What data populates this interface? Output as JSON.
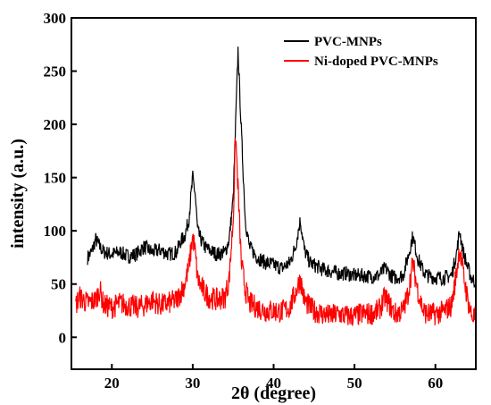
{
  "chart_data": {
    "type": "line",
    "xlabel": "2θ (degree)",
    "ylabel": "intensity (a.u.)",
    "xlim": [
      15,
      65
    ],
    "ylim": [
      -30,
      300
    ],
    "x_ticks": [
      20,
      30,
      40,
      50,
      60
    ],
    "y_ticks": [
      0,
      50,
      100,
      150,
      200,
      250,
      300
    ],
    "grid": false,
    "legend_position": "top-right",
    "series": [
      {
        "name": "PVC-MNPs",
        "color": "#000000",
        "x": [
          17,
          17.5,
          18,
          18.5,
          19,
          20,
          21,
          22,
          23,
          24,
          25,
          26,
          27,
          28,
          28.5,
          29,
          29.5,
          30,
          30.3,
          30.6,
          31,
          31.5,
          32,
          33,
          34,
          34.5,
          35,
          35.3,
          35.6,
          36,
          36.5,
          37,
          38,
          39,
          40,
          41,
          42,
          42.7,
          43.3,
          43.8,
          44.5,
          45,
          46,
          47,
          48,
          49,
          50,
          51,
          52,
          53,
          53.8,
          54.5,
          55,
          56,
          56.6,
          57.2,
          57.8,
          58.5,
          59,
          60,
          61,
          62,
          62.6,
          63,
          63.4,
          64,
          64.5,
          65
        ],
        "y": [
          75,
          80,
          92,
          85,
          80,
          78,
          80,
          76,
          78,
          85,
          80,
          82,
          78,
          80,
          90,
          95,
          110,
          150,
          135,
          100,
          92,
          85,
          82,
          78,
          80,
          92,
          130,
          200,
          270,
          195,
          110,
          85,
          75,
          70,
          68,
          65,
          70,
          85,
          110,
          82,
          70,
          68,
          64,
          62,
          60,
          60,
          58,
          58,
          57,
          58,
          65,
          58,
          56,
          58,
          75,
          95,
          75,
          62,
          58,
          56,
          56,
          58,
          78,
          100,
          82,
          65,
          55,
          52
        ]
      },
      {
        "name": "Ni-doped PVC-MNPs",
        "color": "#ff0000",
        "x": [
          15.5,
          16,
          17,
          18,
          18.5,
          19,
          20,
          21,
          22,
          23,
          24,
          25,
          26,
          27,
          28,
          28.5,
          29,
          29.5,
          30,
          30.3,
          30.6,
          31,
          31.5,
          32,
          33,
          34,
          34.5,
          35,
          35.3,
          35.6,
          36,
          36.5,
          37,
          38,
          39,
          40,
          41,
          42,
          42.7,
          43.3,
          43.8,
          44.5,
          45,
          46,
          47,
          48,
          49,
          50,
          51,
          52,
          53,
          53.8,
          54.5,
          55,
          56,
          56.6,
          57.2,
          57.8,
          58.5,
          59,
          60,
          61,
          62,
          62.6,
          63,
          63.4,
          64,
          64.5,
          65
        ],
        "y": [
          30,
          38,
          32,
          35,
          45,
          30,
          28,
          32,
          30,
          28,
          30,
          35,
          30,
          32,
          35,
          42,
          50,
          65,
          95,
          80,
          55,
          48,
          42,
          38,
          35,
          38,
          55,
          110,
          190,
          140,
          70,
          45,
          32,
          28,
          25,
          25,
          24,
          28,
          42,
          55,
          35,
          28,
          25,
          22,
          20,
          22,
          20,
          20,
          22,
          22,
          25,
          38,
          28,
          22,
          25,
          40,
          70,
          45,
          25,
          22,
          22,
          24,
          30,
          60,
          85,
          62,
          35,
          20,
          18
        ]
      }
    ]
  }
}
